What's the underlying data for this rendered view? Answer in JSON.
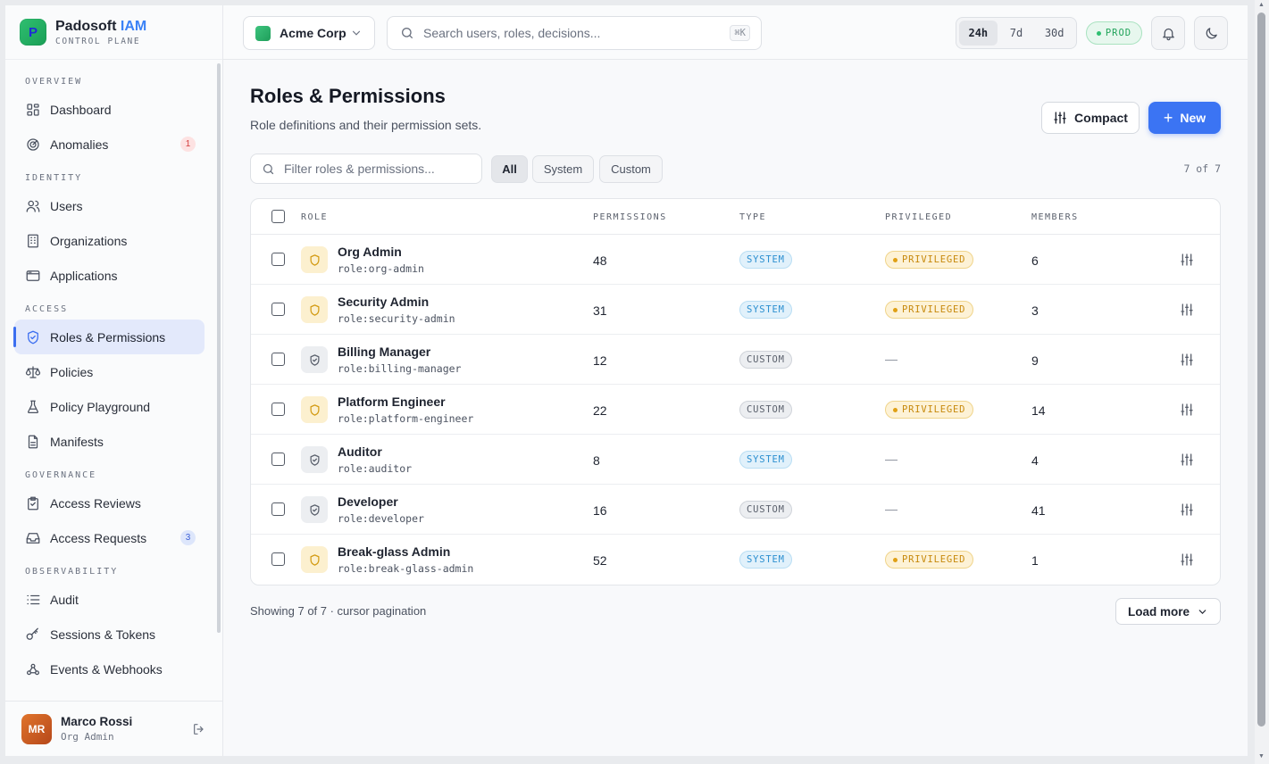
{
  "brand": {
    "logo_letter": "P",
    "name": "Padosoft",
    "name_accent": "IAM",
    "subtitle": "CONTROL PLANE"
  },
  "sidebar": {
    "sections": [
      {
        "label": "OVERVIEW",
        "items": [
          {
            "label": "Dashboard",
            "icon": "grid-icon"
          },
          {
            "label": "Anomalies",
            "icon": "radar-icon",
            "badge": "1",
            "badge_color": "red"
          }
        ]
      },
      {
        "label": "IDENTITY",
        "items": [
          {
            "label": "Users",
            "icon": "users-icon"
          },
          {
            "label": "Organizations",
            "icon": "building-icon"
          },
          {
            "label": "Applications",
            "icon": "window-icon"
          }
        ]
      },
      {
        "label": "ACCESS",
        "items": [
          {
            "label": "Roles & Permissions",
            "icon": "shield-check-icon",
            "active": true
          },
          {
            "label": "Policies",
            "icon": "scale-icon"
          },
          {
            "label": "Policy Playground",
            "icon": "flask-icon"
          },
          {
            "label": "Manifests",
            "icon": "file-icon"
          }
        ]
      },
      {
        "label": "GOVERNANCE",
        "items": [
          {
            "label": "Access Reviews",
            "icon": "clipboard-check-icon"
          },
          {
            "label": "Access Requests",
            "icon": "inbox-icon",
            "badge": "3",
            "badge_color": "blue"
          }
        ]
      },
      {
        "label": "OBSERVABILITY",
        "items": [
          {
            "label": "Audit",
            "icon": "list-icon"
          },
          {
            "label": "Sessions & Tokens",
            "icon": "key-icon"
          },
          {
            "label": "Events & Webhooks",
            "icon": "webhook-icon"
          }
        ]
      }
    ]
  },
  "user": {
    "initials": "MR",
    "name": "Marco Rossi",
    "role": "Org Admin"
  },
  "topbar": {
    "org": "Acme Corp",
    "search_placeholder": "Search users, roles, decisions...",
    "search_shortcut": "⌘K",
    "ranges": [
      "24h",
      "7d",
      "30d"
    ],
    "selected_range": "24h",
    "env": "PROD"
  },
  "page": {
    "title": "Roles & Permissions",
    "subtitle": "Role definitions and their permission sets.",
    "compact_label": "Compact",
    "new_label": "New",
    "filter_placeholder": "Filter roles & permissions...",
    "chips": [
      "All",
      "System",
      "Custom"
    ],
    "selected_chip": "All",
    "count": "7 of 7",
    "footer": "Showing 7 of 7 · cursor pagination",
    "load_more": "Load more"
  },
  "table": {
    "columns": [
      "ROLE",
      "PERMISSIONS",
      "TYPE",
      "PRIVILEGED",
      "MEMBERS"
    ],
    "rows": [
      {
        "name": "Org Admin",
        "key": "role:org-admin",
        "permissions": "48",
        "type": "SYSTEM",
        "privileged": "PRIVILEGED",
        "members": "6"
      },
      {
        "name": "Security Admin",
        "key": "role:security-admin",
        "permissions": "31",
        "type": "SYSTEM",
        "privileged": "PRIVILEGED",
        "members": "3"
      },
      {
        "name": "Billing Manager",
        "key": "role:billing-manager",
        "permissions": "12",
        "type": "CUSTOM",
        "privileged": "—",
        "members": "9"
      },
      {
        "name": "Platform Engineer",
        "key": "role:platform-engineer",
        "permissions": "22",
        "type": "CUSTOM",
        "privileged": "PRIVILEGED",
        "members": "14"
      },
      {
        "name": "Auditor",
        "key": "role:auditor",
        "permissions": "8",
        "type": "SYSTEM",
        "privileged": "—",
        "members": "4"
      },
      {
        "name": "Developer",
        "key": "role:developer",
        "permissions": "16",
        "type": "CUSTOM",
        "privileged": "—",
        "members": "41"
      },
      {
        "name": "Break-glass Admin",
        "key": "role:break-glass-admin",
        "permissions": "52",
        "type": "SYSTEM",
        "privileged": "PRIVILEGED",
        "members": "1"
      }
    ]
  },
  "colors": {
    "accent": "#3b74f3",
    "privileged": "#d39b14",
    "system": "#2b8fd0",
    "env": "#21a35a"
  }
}
